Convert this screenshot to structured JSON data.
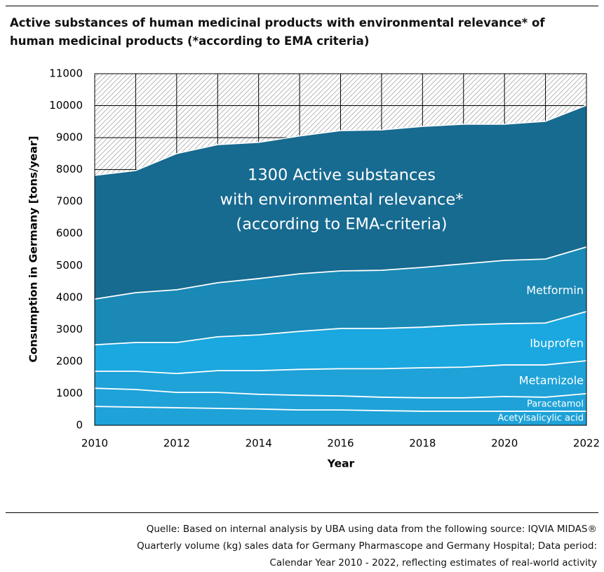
{
  "chart_data": {
    "type": "stacked-area",
    "title": "Active substances of human medicinal products with environmental relevance* of human medicinal products (*according to EMA criteria)",
    "xlabel": "Year",
    "ylabel": "Consumption in Germany [tons/year]",
    "x": [
      2010,
      2011,
      2012,
      2013,
      2014,
      2015,
      2016,
      2017,
      2018,
      2019,
      2020,
      2021,
      2022
    ],
    "xlim": [
      2010,
      2022
    ],
    "xticks": [
      2010,
      2012,
      2014,
      2016,
      2018,
      2020,
      2022
    ],
    "ylim": [
      0,
      11000
    ],
    "yticks": [
      0,
      1000,
      2000,
      3000,
      4000,
      5000,
      6000,
      7000,
      8000,
      9000,
      10000,
      11000
    ],
    "grid": true,
    "series": [
      {
        "name": "Acetylsalicylic acid",
        "color": "#1ea2d8",
        "values": [
          590,
          570,
          550,
          530,
          510,
          480,
          480,
          460,
          440,
          440,
          440,
          440,
          440
        ]
      },
      {
        "name": "Paracetamol",
        "color": "#1ea2d8",
        "values": [
          570,
          550,
          480,
          500,
          460,
          460,
          440,
          420,
          420,
          420,
          460,
          440,
          550
        ]
      },
      {
        "name": "Metamizole",
        "color": "#1ea2d8",
        "values": [
          530,
          570,
          590,
          680,
          740,
          810,
          850,
          890,
          940,
          960,
          990,
          1010,
          1030
        ]
      },
      {
        "name": "Ibuprofen",
        "color": "#1ba7df",
        "values": [
          830,
          900,
          970,
          1060,
          1120,
          1190,
          1260,
          1260,
          1270,
          1320,
          1290,
          1310,
          1540
        ]
      },
      {
        "name": "Metformin",
        "color": "#1a89b6",
        "values": [
          1430,
          1560,
          1650,
          1690,
          1760,
          1800,
          1800,
          1820,
          1870,
          1910,
          1980,
          2000,
          2020
        ]
      },
      {
        "color": "#176a90",
        "values": [
          3870,
          3820,
          4260,
          4320,
          4260,
          4310,
          4390,
          4390,
          4410,
          4370,
          4260,
          4310,
          4430
        ]
      }
    ],
    "annotation": [
      "1300 Active substances",
      "with environmental relevance*",
      "(according to EMA-criteria)"
    ],
    "source": [
      "Quelle: Based on internal analysis by UBA using data from the following source: IQVIA MIDAS®",
      "Quarterly volume (kg) sales data for Germany Pharmascope and Germany Hospital; Data period:",
      "Calendar Year 2010 - 2022, reflecting estimates of real-world activity"
    ]
  }
}
